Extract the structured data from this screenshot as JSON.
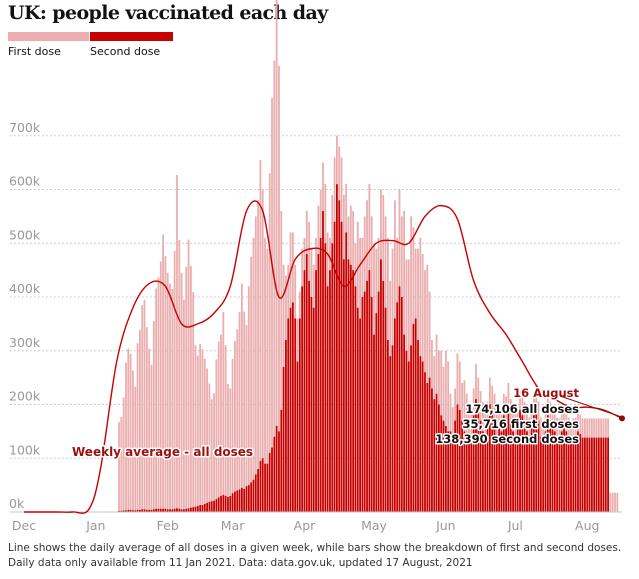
{
  "header": {
    "title": "UK: people vaccinated each day"
  },
  "legend": [
    {
      "label": "First dose",
      "color": "#eaaeaf"
    },
    {
      "label": "Second dose",
      "color": "#c70000"
    }
  ],
  "colors": {
    "first_dose": "#eaaeaf",
    "second_dose": "#c70000",
    "average_line": "#c70000",
    "grid": "#bdbdbd",
    "axis_text": "#999999",
    "annotation_text": "#8a0a0a"
  },
  "footnote": {
    "line1": "Line shows the daily average of all doses in a given week, while bars show the breakdown of first and second doses.",
    "line2": "Daily data only available from 11 Jan 2021. Data: data.gov.uk, updated 17 August, 2021"
  },
  "chart_data": {
    "type": "bar",
    "title": "UK: people vaccinated each day",
    "x_axis": {
      "range": [
        "2020-12-01",
        "2021-08-16"
      ],
      "tick_labels": [
        "Dec",
        "Jan",
        "Feb",
        "Mar",
        "Apr",
        "May",
        "Jun",
        "Jul",
        "Aug"
      ],
      "tick_dates": [
        "2020-12-01",
        "2021-01-01",
        "2021-02-01",
        "2021-03-01",
        "2021-04-01",
        "2021-05-01",
        "2021-06-01",
        "2021-07-01",
        "2021-08-01"
      ]
    },
    "y_axis": {
      "range": [
        0,
        800000
      ],
      "tick_values": [
        0,
        100000,
        200000,
        300000,
        400000,
        500000,
        600000,
        700000
      ],
      "tick_labels": [
        "0k",
        "100k",
        "200k",
        "300k",
        "400k",
        "500k",
        "600k",
        "700k"
      ],
      "grid": true
    },
    "daily_bars": {
      "start_date": "2021-01-11",
      "stacked": true,
      "series": [
        {
          "name": "First dose",
          "values": [
            165000,
            175000,
            210000,
            275000,
            300000,
            290000,
            260000,
            230000,
            310000,
            335000,
            380000,
            390000,
            340000,
            300000,
            270000,
            350000,
            410000,
            430000,
            460000,
            510000,
            470000,
            440000,
            420000,
            410000,
            480000,
            620000,
            500000,
            440000,
            390000,
            450000,
            500000,
            450000,
            400000,
            300000,
            280000,
            300000,
            290000,
            270000,
            250000,
            220000,
            190000,
            200000,
            260000,
            290000,
            300000,
            340000,
            280000,
            210000,
            200000,
            250000,
            280000,
            300000,
            330000,
            380000,
            330000,
            300000,
            370000,
            420000,
            450000,
            480000,
            500000,
            560000,
            500000,
            420000,
            400000,
            520000,
            650000,
            700000,
            830000,
            680000,
            370000,
            190000,
            120000,
            100000,
            140000,
            130000,
            100000,
            80000,
            50000,
            70000,
            60000,
            80000,
            110000,
            90000,
            80000,
            60000,
            90000,
            90000,
            90000,
            110000,
            100000,
            60000,
            90000,
            120000,
            90000,
            100000,
            120000,
            120000,
            90000,
            80000,
            110000,
            110000,
            80000,
            160000,
            150000,
            110000,
            140000,
            150000,
            160000,
            150000,
            170000,
            120000,
            100000,
            130000,
            160000,
            170000,
            190000,
            140000,
            180000,
            220000,
            120000,
            180000,
            150000,
            230000,
            170000,
            190000,
            240000,
            180000,
            130000,
            170000,
            220000,
            200000,
            190000,
            220000,
            160000,
            90000,
            80000,
            110000,
            100000,
            120000,
            100000,
            140000,
            130000,
            70000,
            55000,
            60000,
            95000,
            90000,
            70000,
            95000,
            80000,
            65000,
            50000,
            50000,
            65000,
            50000,
            55000,
            55000,
            55000,
            45000,
            50000,
            45000,
            50000,
            45000,
            40000,
            40000,
            40000,
            45000,
            40000,
            40000,
            45000,
            45000,
            35000,
            35716,
            35000,
            35000,
            35000,
            36000,
            35000,
            36000,
            35000,
            35716,
            35716,
            35716,
            35716,
            35716,
            35716,
            35716,
            35716,
            35716,
            35716,
            35716,
            35716,
            35716,
            35716,
            35716,
            35716,
            35716,
            35716,
            35716,
            35716,
            35716,
            35716,
            35716,
            35716,
            35716,
            35716,
            35716,
            35716,
            35716,
            35716,
            35716,
            35716,
            35716,
            35716,
            35716
          ]
        },
        {
          "name": "Second dose",
          "values": [
            2000,
            2000,
            3000,
            3000,
            4000,
            4000,
            3000,
            3000,
            4000,
            4000,
            5000,
            5000,
            4000,
            4000,
            4000,
            5000,
            6000,
            6000,
            6000,
            6000,
            6000,
            5000,
            5000,
            5000,
            6000,
            7000,
            6000,
            5000,
            5000,
            6000,
            7000,
            8000,
            9000,
            10000,
            11000,
            13000,
            13000,
            15000,
            17000,
            19000,
            20000,
            21000,
            24000,
            27000,
            30000,
            32000,
            30000,
            28000,
            30000,
            35000,
            38000,
            40000,
            42000,
            45000,
            43000,
            48000,
            50000,
            55000,
            60000,
            70000,
            80000,
            95000,
            100000,
            90000,
            90000,
            110000,
            120000,
            140000,
            160000,
            150000,
            190000,
            270000,
            320000,
            360000,
            380000,
            390000,
            360000,
            280000,
            360000,
            420000,
            450000,
            480000,
            430000,
            400000,
            380000,
            450000,
            480000,
            510000,
            560000,
            500000,
            420000,
            450000,
            500000,
            540000,
            610000,
            580000,
            540000,
            470000,
            520000,
            470000,
            460000,
            450000,
            420000,
            380000,
            360000,
            400000,
            410000,
            430000,
            450000,
            400000,
            330000,
            370000,
            410000,
            470000,
            430000,
            380000,
            320000,
            290000,
            310000,
            360000,
            390000,
            420000,
            400000,
            330000,
            300000,
            280000,
            310000,
            350000,
            360000,
            320000,
            290000,
            280000,
            260000,
            240000,
            250000,
            230000,
            210000,
            220000,
            200000,
            180000,
            170000,
            160000,
            150000,
            150000,
            140000,
            170000,
            200000,
            190000,
            170000,
            150000,
            140000,
            130000,
            140000,
            180000,
            210000,
            200000,
            170000,
            150000,
            140000,
            160000,
            200000,
            190000,
            170000,
            140000,
            160000,
            150000,
            180000,
            170000,
            200000,
            170000,
            150000,
            140000,
            160000,
            190000,
            180000,
            170000,
            150000,
            140000,
            160000,
            180000,
            200000,
            170000,
            140000,
            130000,
            150000,
            180000,
            170000,
            160000,
            150000,
            140000,
            138390,
            150000,
            160000,
            150000,
            140000,
            130000,
            138390,
            140000,
            150000,
            145000,
            138390,
            138390,
            138390,
            138390,
            138390,
            138390,
            138390,
            138390,
            138390,
            138390,
            138390,
            138390
          ]
        }
      ]
    },
    "line": {
      "name": "Weekly average - all doses",
      "x": [
        "2020-12-01",
        "2020-12-08",
        "2020-12-15",
        "2020-12-22",
        "2020-12-29",
        "2021-01-03",
        "2021-01-10",
        "2021-01-17",
        "2021-01-24",
        "2021-01-31",
        "2021-02-07",
        "2021-02-14",
        "2021-02-21",
        "2021-02-28",
        "2021-03-07",
        "2021-03-14",
        "2021-03-21",
        "2021-03-28",
        "2021-04-04",
        "2021-04-11",
        "2021-04-18",
        "2021-04-25",
        "2021-05-02",
        "2021-05-09",
        "2021-05-16",
        "2021-05-23",
        "2021-05-30",
        "2021-06-06",
        "2021-06-13",
        "2021-06-20",
        "2021-06-27",
        "2021-07-04",
        "2021-07-11",
        "2021-07-18",
        "2021-07-25",
        "2021-08-01",
        "2021-08-08",
        "2021-08-16"
      ],
      "y": [
        0,
        0,
        0,
        0,
        5000,
        80000,
        280000,
        380000,
        425000,
        420000,
        350000,
        350000,
        370000,
        420000,
        560000,
        560000,
        400000,
        470000,
        490000,
        480000,
        420000,
        460000,
        500000,
        505000,
        500000,
        550000,
        570000,
        545000,
        430000,
        370000,
        330000,
        280000,
        230000,
        210000,
        195000,
        195000,
        190000,
        174106
      ]
    },
    "annotations": [
      {
        "text": "Weekly average - all doses"
      },
      {
        "text": "16 August"
      },
      {
        "text": "174,106 all doses"
      },
      {
        "text": "35,716 first doses"
      },
      {
        "text": "138,390 second doses"
      }
    ]
  }
}
